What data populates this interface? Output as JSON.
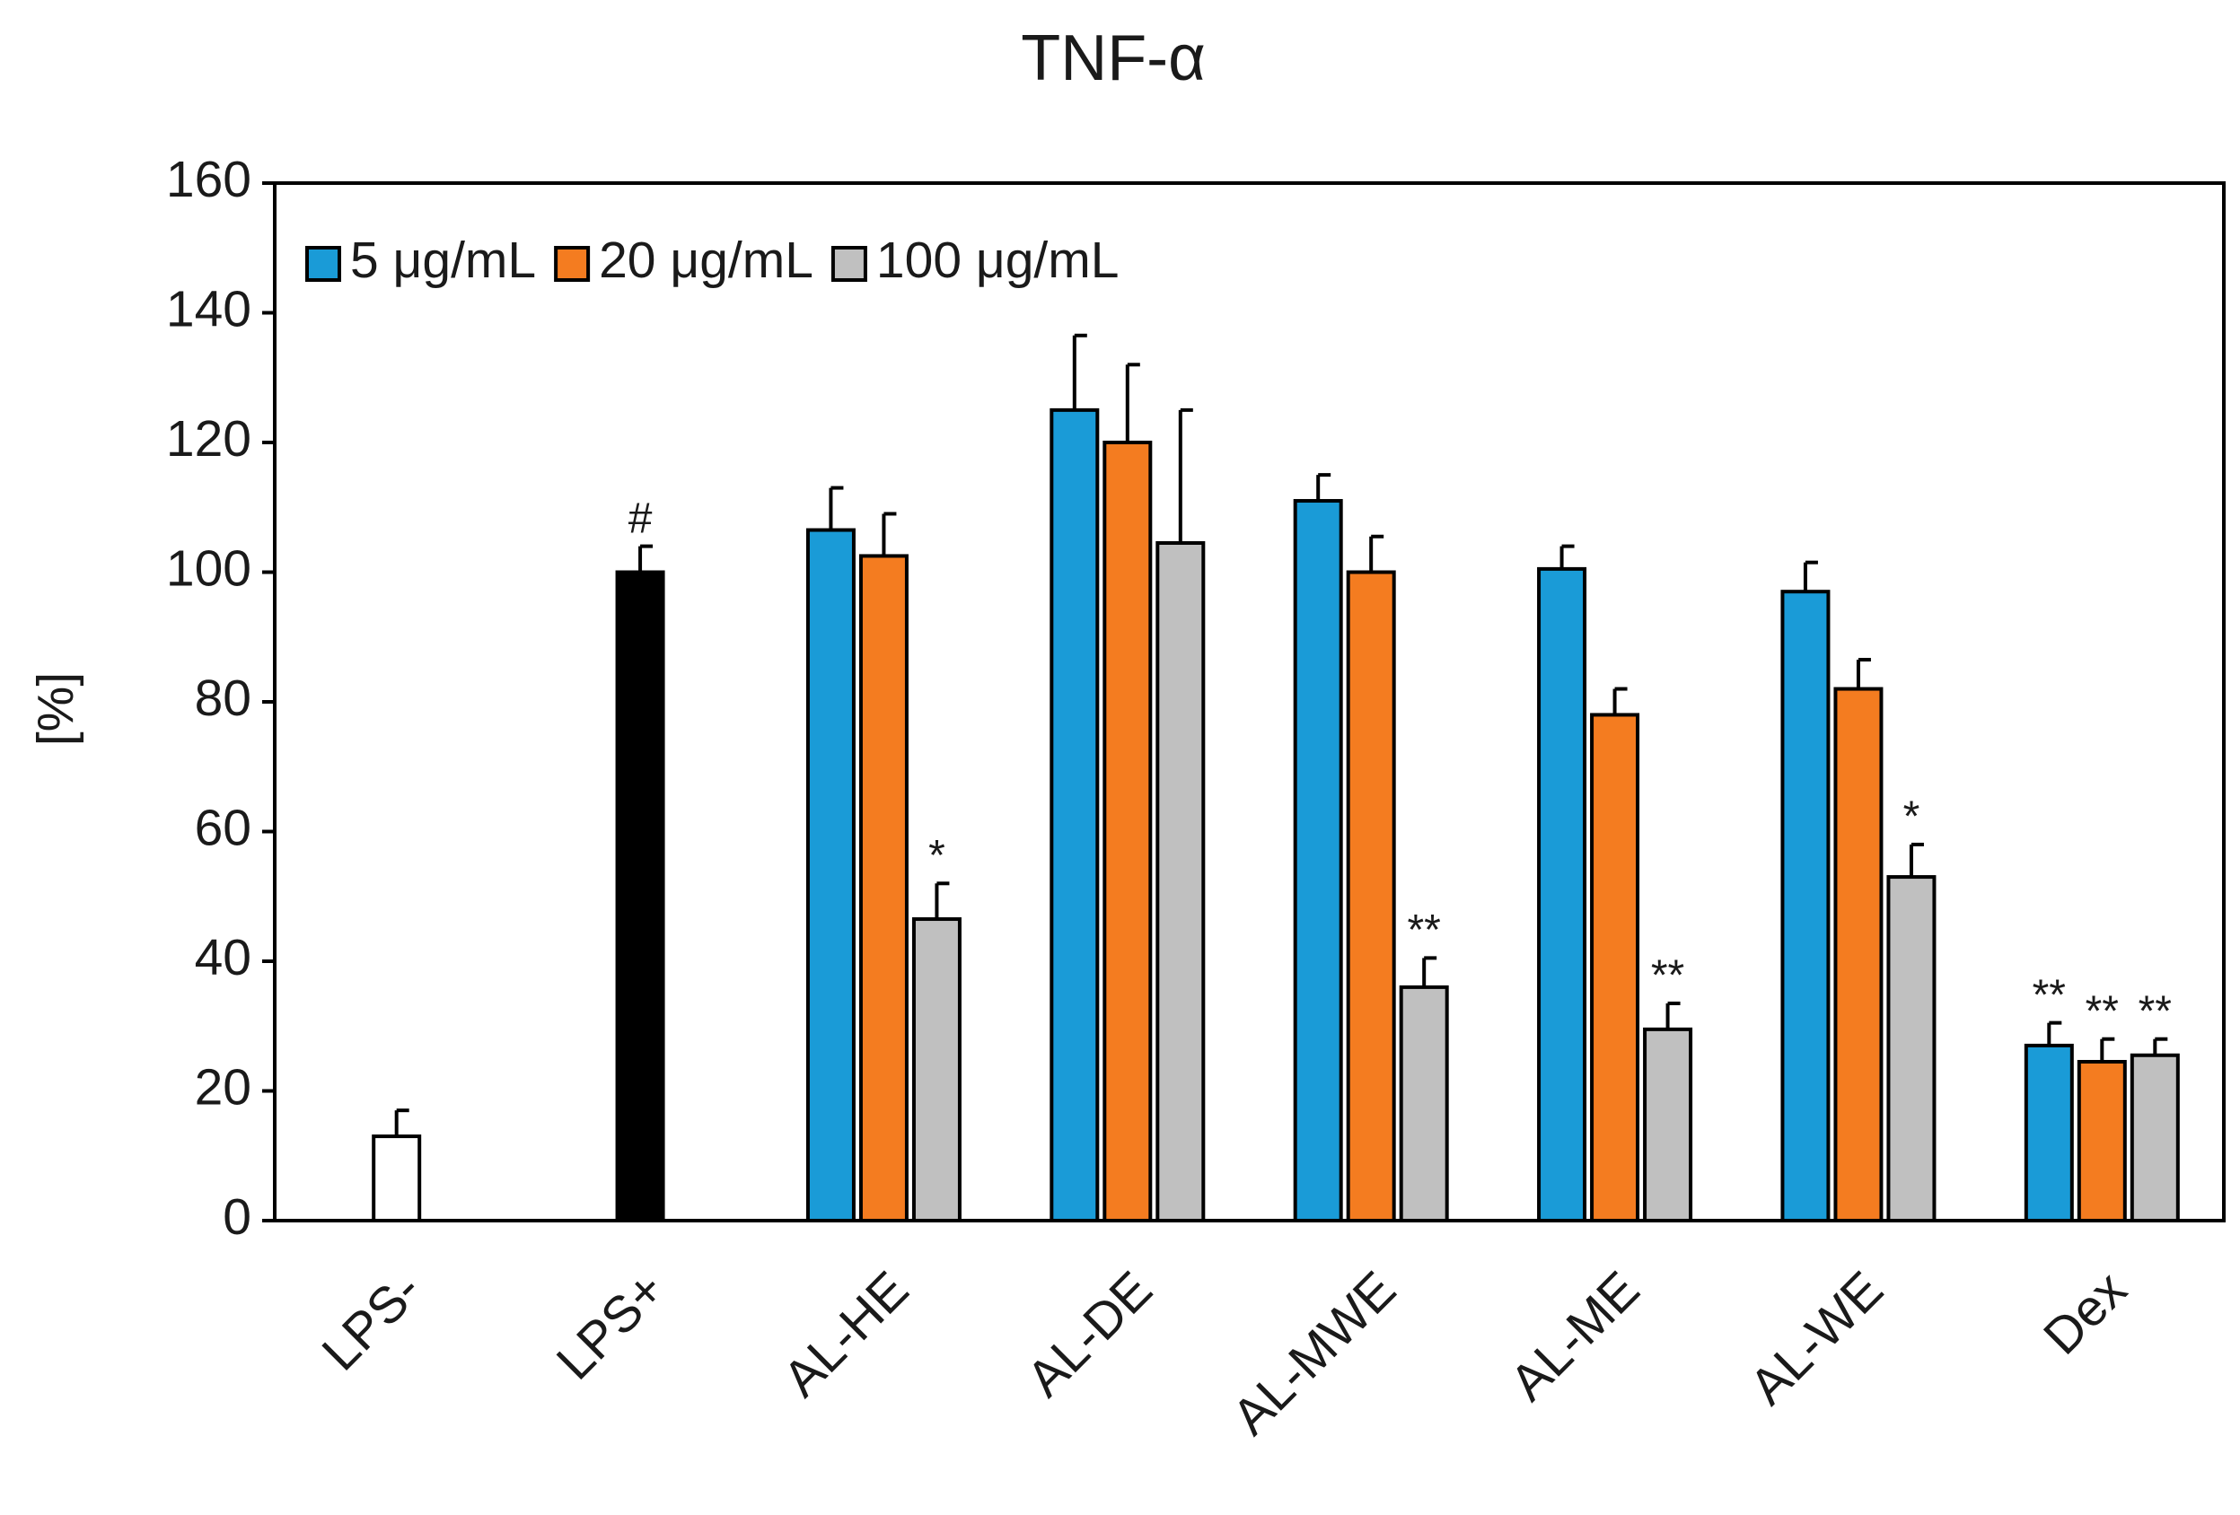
{
  "chart_data": {
    "type": "bar",
    "title": "TNF-α",
    "y_label": "[%]",
    "categories": [
      "LPS-",
      "LPS+",
      "AL-HE",
      "AL-DE",
      "AL-MWE",
      "AL-ME",
      "AL-WE",
      "Dex"
    ],
    "controls": {
      "values": [
        13,
        100,
        null,
        null,
        null,
        null,
        null,
        null
      ],
      "errors": [
        4,
        4,
        null,
        null,
        null,
        null,
        null,
        null
      ],
      "colors": [
        "#ffffff",
        "#000000"
      ],
      "labels": [
        null,
        "#",
        null,
        null,
        null,
        null,
        null,
        null
      ]
    },
    "series": [
      {
        "name": "5 μg/mL",
        "color": "#1a9bd7",
        "values": [
          null,
          null,
          106.5,
          125,
          111,
          100.5,
          97,
          27
        ],
        "errors": [
          null,
          null,
          6.5,
          11.5,
          4,
          3.5,
          4.5,
          3.5
        ],
        "labels": [
          null,
          null,
          null,
          null,
          null,
          null,
          null,
          "**"
        ]
      },
      {
        "name": "20 μg/mL",
        "color": "#f47c20",
        "values": [
          null,
          null,
          102.5,
          120,
          100,
          78,
          82,
          24.5
        ],
        "errors": [
          null,
          null,
          6.5,
          12,
          5.5,
          4,
          4.5,
          3.5
        ],
        "labels": [
          null,
          null,
          null,
          null,
          null,
          null,
          null,
          "**"
        ]
      },
      {
        "name": "100 μg/mL",
        "color": "#c0c0c0",
        "values": [
          null,
          null,
          46.5,
          104.5,
          36,
          29.5,
          53,
          25.5
        ],
        "errors": [
          null,
          null,
          5.5,
          20.5,
          4.5,
          4,
          5,
          2.5
        ],
        "labels": [
          null,
          null,
          "*",
          null,
          "**",
          "**",
          "*",
          "**"
        ]
      }
    ],
    "ylim": [
      0,
      160
    ],
    "yticks": [
      0,
      20,
      40,
      60,
      80,
      100,
      120,
      140,
      160
    ],
    "legend": "upper left"
  }
}
